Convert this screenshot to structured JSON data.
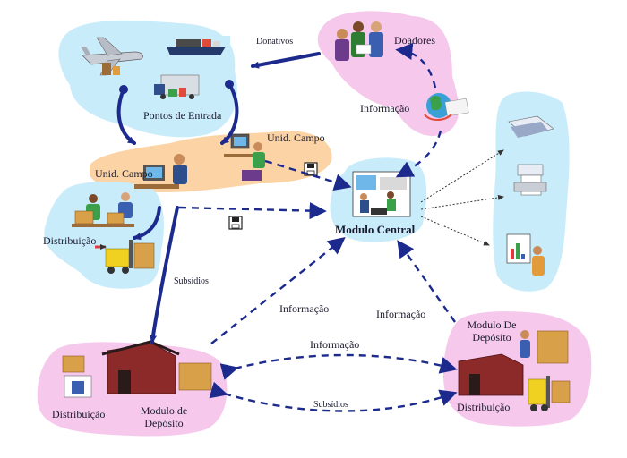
{
  "labels": {
    "donativos": "Donativos",
    "doadores": "Doadores",
    "pontos_entrada": "Pontos de Entrada",
    "informacao_doadores": "Informação",
    "unid_campo_right": "Unid. Campo",
    "unid_campo_left": "Unid. Campo",
    "distribuicao_top": "Distribuição",
    "modulo_central": "Modulo Central",
    "subsidios_left": "Subsídios",
    "informacao_left": "Informação",
    "informacao_right": "Informação",
    "informacao_mid": "Informação",
    "subsidios_bottom": "Subsídios",
    "distribuicao_bl": "Distribuição",
    "modulo_deposito_bl_1": "Modulo de",
    "modulo_deposito_bl_2": "Depósito",
    "modulo_deposito_br_1": "Modulo De",
    "modulo_deposito_br_2": "Depósito",
    "distribuicao_br": "Distribuição"
  },
  "colors": {
    "blob_blue": "#c9ecfb",
    "blob_pink": "#f6c8ec",
    "blob_orange": "#fbd3a4",
    "arrow_navy": "#1b2a8c",
    "arrow_dotted": "#333333"
  },
  "icons": [
    "airplane-icon",
    "ship-icon",
    "truck-icon",
    "people-icon",
    "globe-icon",
    "computer-icon",
    "floppy-disk-icon",
    "forklift-icon",
    "warehouse-icon",
    "fax-icon",
    "printer-icon",
    "chart-icon"
  ]
}
